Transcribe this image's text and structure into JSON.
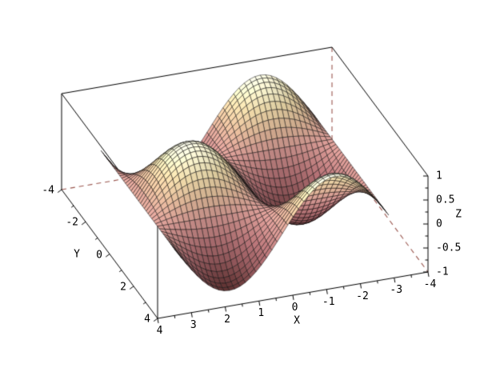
{
  "chart_data": {
    "type": "surface3d",
    "title": "",
    "function": "z = sin(x)*cos(y)",
    "x_domain": [
      -3.14159265,
      3.14159265
    ],
    "y_domain": [
      -3.14159265,
      3.14159265
    ],
    "z_extent": [
      -1,
      1
    ],
    "grid_divisions": 40,
    "box": {
      "x_range": [
        -4,
        4
      ],
      "y_range": [
        -4,
        4
      ],
      "z_range": [
        -1,
        1
      ]
    },
    "axes": {
      "x": {
        "label": "X",
        "tick_values": [
          4,
          3,
          2,
          1,
          0,
          -1,
          -2,
          -3,
          -4
        ],
        "tick_labels": [
          "4",
          "3",
          "2",
          "1",
          "0",
          "-1",
          "-2",
          "-3",
          "-4"
        ],
        "minor_step": 0.5
      },
      "y": {
        "label": "Y",
        "tick_values": [
          -4,
          -2,
          0,
          2,
          4
        ],
        "tick_labels": [
          "-4",
          "-2",
          "0",
          "2",
          "4"
        ],
        "minor_step": 1
      },
      "z": {
        "label": "Z",
        "tick_values": [
          1,
          0.5,
          0,
          -0.5,
          -1
        ],
        "tick_labels": [
          "1",
          "0.5",
          "0",
          "-0.5",
          "-1"
        ],
        "minor_step": 0.25
      }
    },
    "style": {
      "background": "#ffffff",
      "mesh_line_color": "rgba(10,10,10,0.9)",
      "box_edge_color": "#000000",
      "hidden_edge_color": "#9a564e",
      "hidden_edge_dash": [
        6,
        5
      ],
      "colormap": [
        {
          "t": 0.0,
          "color": "#5a3030"
        },
        {
          "t": 0.15,
          "color": "#8a5356"
        },
        {
          "t": 0.3,
          "color": "#aa6c6f"
        },
        {
          "t": 0.5,
          "color": "#cd948e"
        },
        {
          "t": 0.65,
          "color": "#d9b394"
        },
        {
          "t": 0.8,
          "color": "#e6d3a4"
        },
        {
          "t": 0.92,
          "color": "#efe9c4"
        },
        {
          "t": 1.0,
          "color": "#f6f2d8"
        }
      ],
      "light_direction": [
        0.5,
        -0.18,
        0.85
      ],
      "ambient": 0.78,
      "diffuse": 0.36,
      "max_light": 1.14
    },
    "legend": null,
    "grid": false
  }
}
